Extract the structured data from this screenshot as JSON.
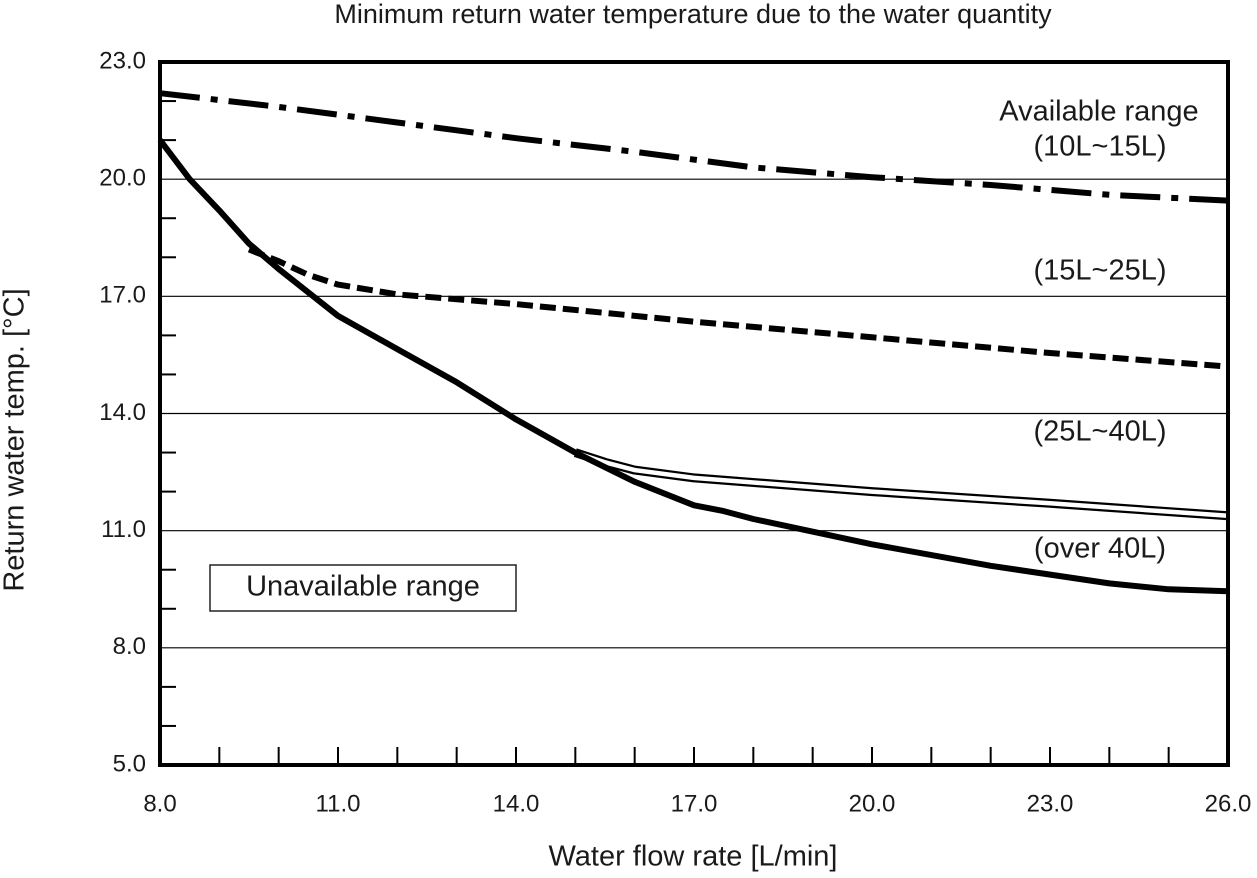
{
  "chart_data": {
    "type": "line",
    "title": "Minimum return water temperature due to the water quantity",
    "xlabel": "Water flow rate [L/min]",
    "ylabel": "Return water temp. [°C]",
    "xlim": [
      8,
      26
    ],
    "ylim": [
      5,
      23
    ],
    "xticks": [
      {
        "value": 8,
        "label": "8.0"
      },
      {
        "value": 11,
        "label": "11.0"
      },
      {
        "value": 14,
        "label": "14.0"
      },
      {
        "value": 17,
        "label": "17.0"
      },
      {
        "value": 20,
        "label": "20.0"
      },
      {
        "value": 23,
        "label": "23.0"
      },
      {
        "value": 26,
        "label": "26.0"
      }
    ],
    "yticks": [
      {
        "value": 5,
        "label": "5.0"
      },
      {
        "value": 8,
        "label": "8.0"
      },
      {
        "value": 11,
        "label": "11.0"
      },
      {
        "value": 14,
        "label": "14.0"
      },
      {
        "value": 17,
        "label": "17.0"
      },
      {
        "value": 20,
        "label": "20.0"
      },
      {
        "value": 23,
        "label": "23.0"
      }
    ],
    "grid": true,
    "annotations": [
      "Available range",
      "Unavailable range"
    ],
    "series": [
      {
        "name": "(10L~15L)",
        "color": "#000000",
        "style": "dashdot",
        "x": [
          8,
          10,
          12,
          14,
          16,
          18,
          20,
          22,
          24,
          26
        ],
        "values": [
          22.2,
          21.85,
          21.45,
          21.05,
          20.7,
          20.3,
          20.05,
          19.85,
          19.6,
          19.45
        ]
      },
      {
        "name": "(15L~25L)",
        "color": "#000000",
        "style": "dashed",
        "x": [
          9.5,
          10,
          10.5,
          11,
          12,
          14,
          17,
          20,
          23,
          26
        ],
        "values": [
          18.2,
          17.9,
          17.55,
          17.3,
          17.05,
          16.8,
          16.35,
          15.95,
          15.55,
          15.2
        ]
      },
      {
        "name": "(25L~40L)",
        "color": "#000000",
        "style": "double",
        "x": [
          15,
          15.5,
          16,
          17,
          20,
          23,
          26
        ],
        "values": [
          13.0,
          12.75,
          12.55,
          12.35,
          12.0,
          11.7,
          11.38
        ]
      },
      {
        "name": "(over 40L)",
        "color": "#000000",
        "style": "solid",
        "x": [
          8,
          8.5,
          9,
          9.5,
          10,
          11,
          12,
          13,
          14,
          15,
          16,
          17,
          17.5,
          18,
          20,
          22,
          24,
          25,
          26
        ],
        "values": [
          21.0,
          20.0,
          19.2,
          18.35,
          17.7,
          16.5,
          15.65,
          14.8,
          13.85,
          13.0,
          12.25,
          11.65,
          11.5,
          11.3,
          10.65,
          10.1,
          9.65,
          9.5,
          9.45
        ]
      }
    ]
  }
}
